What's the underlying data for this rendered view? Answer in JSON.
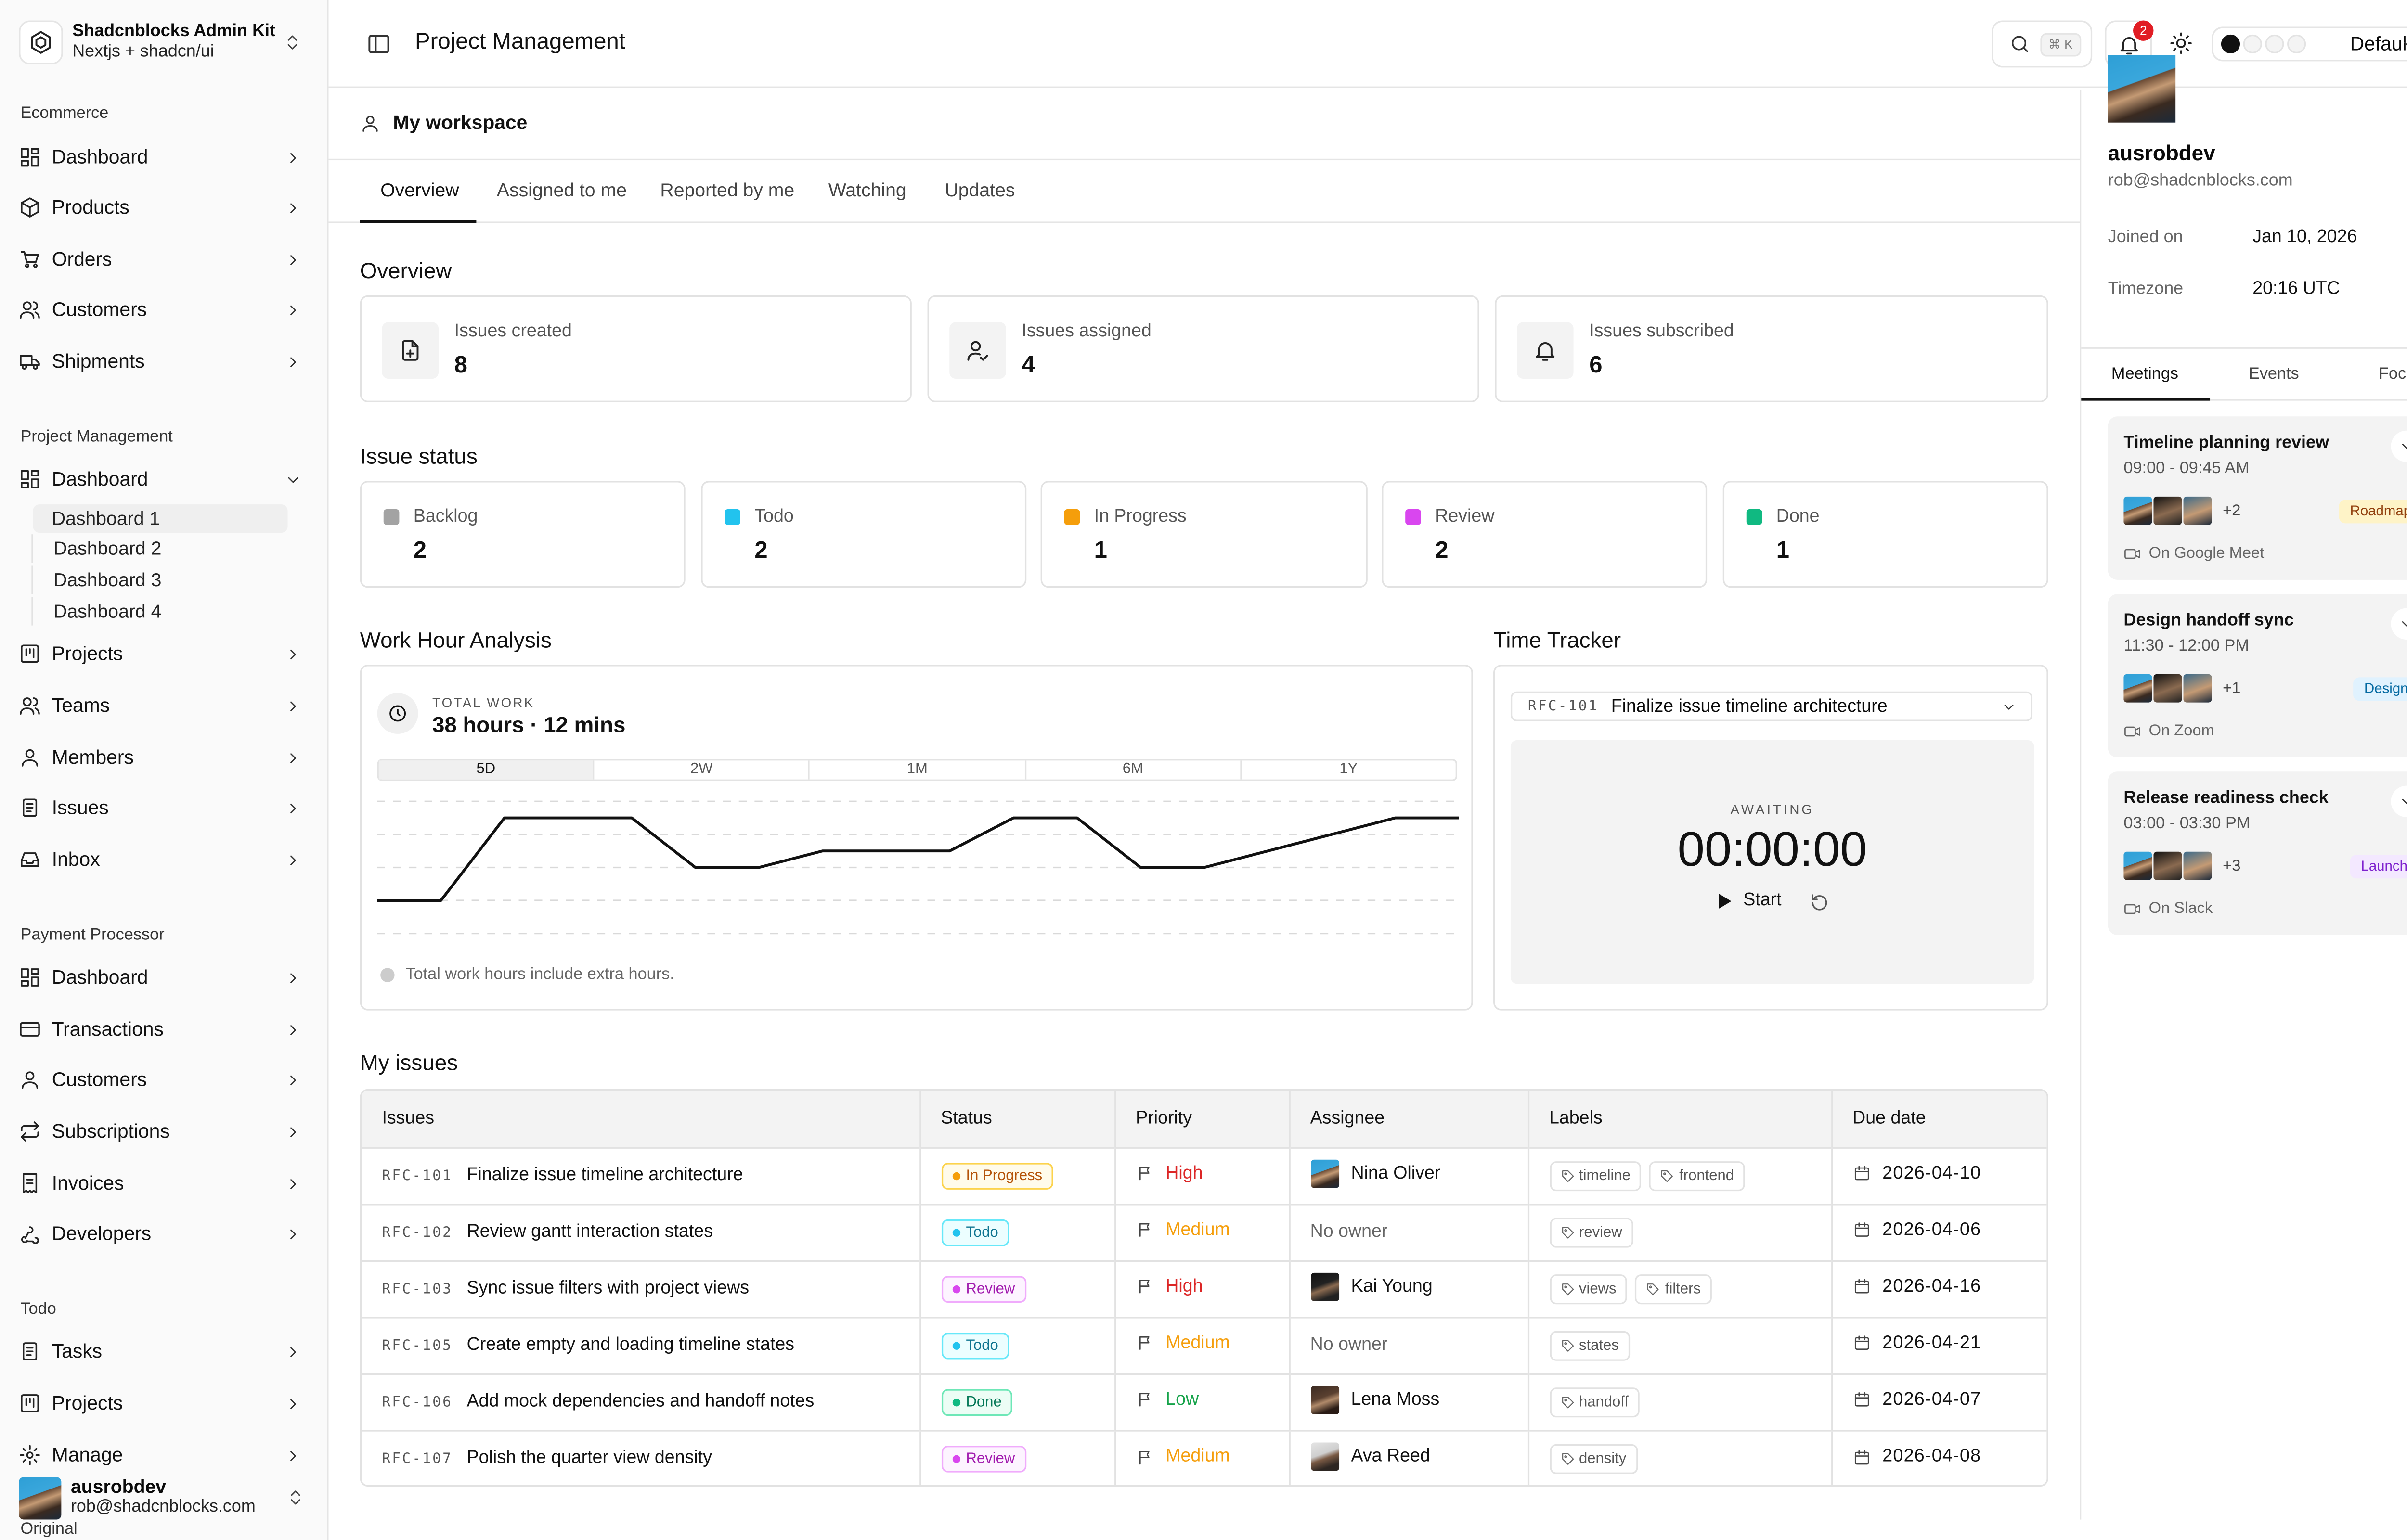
{
  "brand": {
    "name": "Shadcnblocks Admin Kit",
    "subtitle": "Nextjs + shadcn/ui"
  },
  "sidebar": {
    "groups": [
      {
        "title": "Ecommerce"
      },
      {
        "title": "Project Management"
      },
      {
        "title": "Payment Processor"
      },
      {
        "title": "Todo"
      }
    ],
    "ecommerce": [
      "Dashboard",
      "Products",
      "Orders",
      "Customers",
      "Shipments"
    ],
    "pm": [
      "Dashboard",
      "Projects",
      "Teams",
      "Members",
      "Issues",
      "Inbox"
    ],
    "pm_sub": [
      "Dashboard 1",
      "Dashboard 2",
      "Dashboard 3",
      "Dashboard 4"
    ],
    "payment": [
      "Dashboard",
      "Transactions",
      "Customers",
      "Subscriptions",
      "Invoices",
      "Developers"
    ],
    "todo": [
      "Tasks",
      "Projects",
      "Manage"
    ],
    "user": {
      "name": "ausrobdev",
      "email": "rob@shadcnblocks.com"
    },
    "original_label": "Original"
  },
  "header": {
    "title": "Project Management",
    "search_kbd": "⌘ K",
    "notifications": "2",
    "theme": "Default"
  },
  "workspace": {
    "title": "My workspace"
  },
  "tabs": [
    "Overview",
    "Assigned to me",
    "Reported by me",
    "Watching",
    "Updates"
  ],
  "overview": {
    "title": "Overview",
    "stats": [
      {
        "label": "Issues created",
        "value": "8"
      },
      {
        "label": "Issues assigned",
        "value": "4"
      },
      {
        "label": "Issues subscribed",
        "value": "6"
      }
    ]
  },
  "issue_status": {
    "title": "Issue status",
    "items": [
      {
        "label": "Backlog",
        "value": "2",
        "color": "#a3a3a3"
      },
      {
        "label": "Todo",
        "value": "2",
        "color": "#22c3ee"
      },
      {
        "label": "In Progress",
        "value": "1",
        "color": "#f59e0b"
      },
      {
        "label": "Review",
        "value": "2",
        "color": "#d946ef"
      },
      {
        "label": "Done",
        "value": "1",
        "color": "#10b981"
      }
    ]
  },
  "work_hours": {
    "title": "Work Hour Analysis",
    "total_label": "TOTAL WORK",
    "total_value": "38 hours · 12 mins",
    "ranges": [
      "5D",
      "2W",
      "1M",
      "6M",
      "1Y"
    ],
    "active_range": "5D",
    "note": "Total work hours include extra hours."
  },
  "chart_data": {
    "type": "line",
    "series": [
      {
        "values": [
          2,
          2,
          7,
          7,
          7,
          4,
          4,
          5,
          5,
          5,
          7,
          7,
          4,
          4,
          5,
          6,
          7,
          7
        ]
      }
    ],
    "ylim": [
      0,
      8
    ],
    "grid": true,
    "title": "",
    "xlabel": "",
    "ylabel": ""
  },
  "tracker": {
    "title": "Time Tracker",
    "issue_id": "RFC-101",
    "issue_title": "Finalize issue timeline architecture",
    "state": "AWAITING",
    "time": "00:00:00",
    "start_label": "Start"
  },
  "issues": {
    "title": "My issues",
    "headers": [
      "Issues",
      "Status",
      "Priority",
      "Assignee",
      "Labels",
      "Due date"
    ],
    "rows": [
      {
        "id": "RFC-101",
        "title": "Finalize issue timeline architecture",
        "status": "In Progress",
        "priority": "High",
        "assignee": "Nina Oliver",
        "labels": [
          "timeline",
          "frontend"
        ],
        "due": "2026-04-10"
      },
      {
        "id": "RFC-102",
        "title": "Review gantt interaction states",
        "status": "Todo",
        "priority": "Medium",
        "assignee": "No owner",
        "labels": [
          "review"
        ],
        "due": "2026-04-06"
      },
      {
        "id": "RFC-103",
        "title": "Sync issue filters with project views",
        "status": "Review",
        "priority": "High",
        "assignee": "Kai Young",
        "labels": [
          "views",
          "filters"
        ],
        "due": "2026-04-16"
      },
      {
        "id": "RFC-105",
        "title": "Create empty and loading timeline states",
        "status": "Todo",
        "priority": "Medium",
        "assignee": "No owner",
        "labels": [
          "states"
        ],
        "due": "2026-04-21"
      },
      {
        "id": "RFC-106",
        "title": "Add mock dependencies and handoff notes",
        "status": "Done",
        "priority": "Low",
        "assignee": "Lena Moss",
        "labels": [
          "handoff"
        ],
        "due": "2026-04-07"
      },
      {
        "id": "RFC-107",
        "title": "Polish the quarter view density",
        "status": "Review",
        "priority": "Medium",
        "assignee": "Ava Reed",
        "labels": [
          "density"
        ],
        "due": "2026-04-08"
      }
    ]
  },
  "profile": {
    "name": "ausrobdev",
    "email": "rob@shadcnblocks.com",
    "joined_label": "Joined on",
    "joined": "Jan 10, 2026",
    "tz_label": "Timezone",
    "tz": "20:16 UTC"
  },
  "rp_tabs": [
    "Meetings",
    "Events",
    "Focus"
  ],
  "meetings": [
    {
      "title": "Timeline planning review",
      "time": "09:00 - 09:45 AM",
      "more": "+2",
      "tag": "Roadmap",
      "location": "On Google Meet"
    },
    {
      "title": "Design handoff sync",
      "time": "11:30 - 12:00 PM",
      "more": "+1",
      "tag": "Design",
      "location": "On Zoom"
    },
    {
      "title": "Release readiness check",
      "time": "03:00 - 03:30 PM",
      "more": "+3",
      "tag": "Launch",
      "location": "On Slack"
    }
  ],
  "colors": {
    "accent": "#111111",
    "high": "#dc2626",
    "medium": "#f59e0b",
    "low": "#16a34a"
  }
}
